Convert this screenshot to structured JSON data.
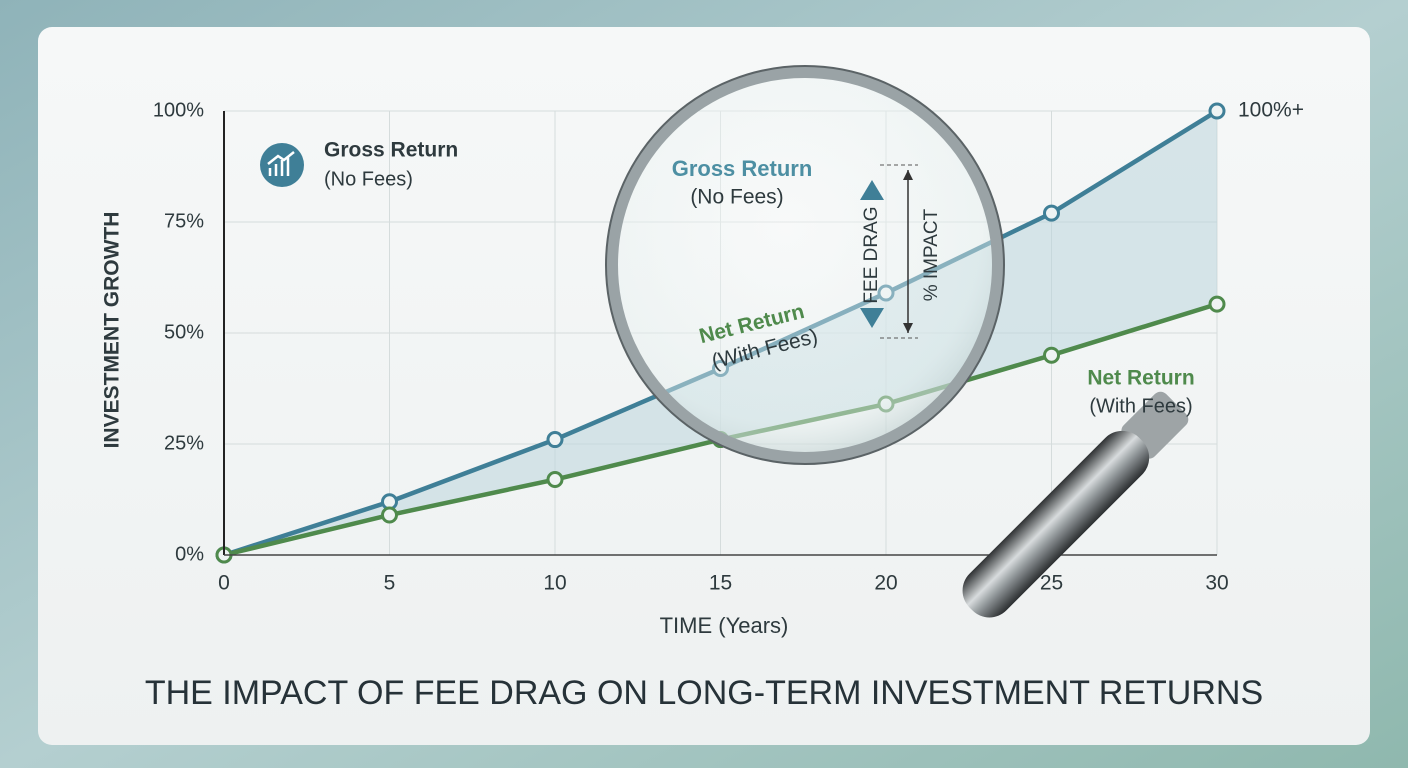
{
  "chart_data": {
    "type": "line",
    "title": "THE IMPACT OF FEE DRAG ON LONG-TERM INVESTMENT RETURNS",
    "xlabel": "TIME (Years)",
    "ylabel": "INVESTMENT GROWTH",
    "x": [
      0,
      5,
      10,
      15,
      20,
      25,
      30
    ],
    "series": [
      {
        "name": "Gross Return",
        "color": "#3f7f97",
        "values": [
          0,
          12,
          26,
          42,
          59,
          77,
          100
        ]
      },
      {
        "name": "Net Return",
        "color": "#4f8a4c",
        "values": [
          0,
          9,
          17,
          26,
          34,
          45,
          56.5
        ]
      }
    ],
    "xlim": [
      0,
      30
    ],
    "xticks": [
      0,
      5,
      10,
      15,
      20,
      25,
      30
    ],
    "ylim": [
      0,
      100
    ],
    "yticks": [
      {
        "value": 0,
        "label": "0%"
      },
      {
        "value": 25,
        "label": "25%"
      },
      {
        "value": 50,
        "label": "50%"
      },
      {
        "value": 75,
        "label": "75%"
      },
      {
        "value": 100,
        "label": "100%"
      }
    ],
    "grid": true,
    "annotations": {
      "gross_note": "(No Fees)",
      "net_note": "(With Fees)",
      "end_label": "100%+",
      "drag": "FEE DRAG",
      "impact": "% IMPACT"
    }
  }
}
